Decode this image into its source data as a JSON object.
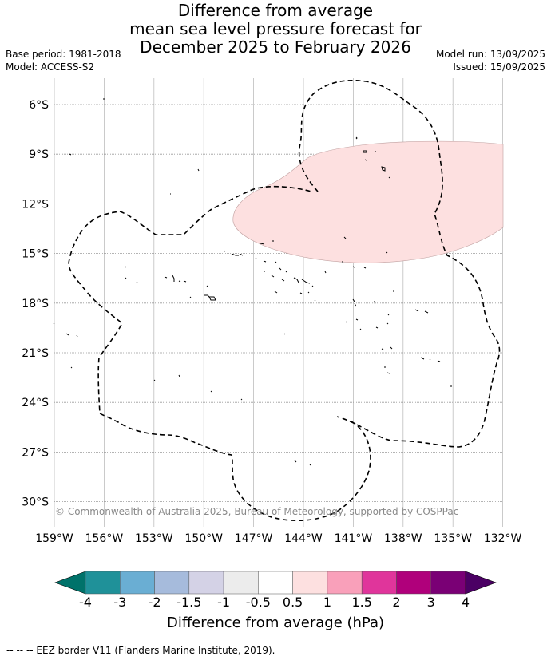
{
  "title_lines": [
    "Difference from average",
    "mean sea level pressure forecast for",
    "December 2025 to February 2026"
  ],
  "meta_left": [
    "Base period: 1981-2018",
    "Model: ACCESS-S2"
  ],
  "meta_right": [
    "Model run: 13/09/2025",
    "Issued: 15/09/2025"
  ],
  "lat_labels": [
    "6°S",
    "9°S",
    "12°S",
    "15°S",
    "18°S",
    "21°S",
    "24°S",
    "27°S",
    "30°S"
  ],
  "lon_labels": [
    "159°W",
    "156°W",
    "153°W",
    "150°W",
    "147°W",
    "144°W",
    "141°W",
    "138°W",
    "135°W",
    "132°W"
  ],
  "copyright": "© Commonwealth of Australia 2025, Bureau of Meteorology, supported by COSPPac",
  "colorbar": {
    "title": "Difference from average (hPa)",
    "tick_labels": [
      "-4",
      "-3",
      "-2",
      "-1.5",
      "-1",
      "-0.5",
      "0.5",
      "1",
      "1.5",
      "2",
      "3",
      "4"
    ],
    "colors": [
      "#00726a",
      "#1f9199",
      "#6aaed3",
      "#a6bbdc",
      "#d4d2e6",
      "#ececec",
      "#ffffff",
      "#fde0e0",
      "#f9a0ba",
      "#e0359b",
      "#b0007b",
      "#7a0075",
      "#4b0064"
    ]
  },
  "anomaly_region_color": "#fde0e0",
  "footer": "--  --  -- EEZ border V11 (Flanders Marine Institute, 2019)."
}
